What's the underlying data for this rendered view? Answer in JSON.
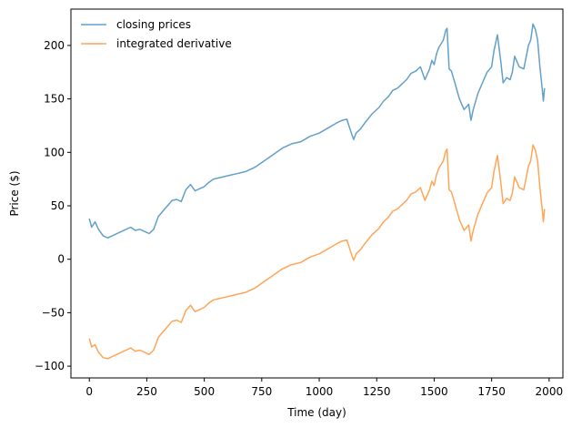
{
  "chart_data": {
    "type": "line",
    "xlabel": "Time (day)",
    "ylabel": "Price ($)",
    "xlim": [
      -80,
      2060
    ],
    "ylim": [
      -111,
      234
    ],
    "xticks": [
      0,
      250,
      500,
      750,
      1000,
      1250,
      1500,
      1750,
      2000
    ],
    "yticks": [
      -100,
      -50,
      0,
      50,
      100,
      150,
      200
    ],
    "legend_position": "top-left",
    "grid": false,
    "series": [
      {
        "name": "closing prices",
        "color": "#1f77b4",
        "x": [
          0,
          10,
          25,
          40,
          60,
          80,
          100,
          120,
          140,
          160,
          180,
          200,
          220,
          240,
          260,
          280,
          300,
          320,
          340,
          360,
          380,
          400,
          420,
          440,
          460,
          480,
          500,
          520,
          540,
          560,
          600,
          640,
          680,
          720,
          760,
          800,
          840,
          880,
          920,
          960,
          1000,
          1040,
          1080,
          1100,
          1120,
          1140,
          1150,
          1160,
          1180,
          1200,
          1230,
          1260,
          1280,
          1300,
          1320,
          1340,
          1360,
          1380,
          1400,
          1420,
          1440,
          1460,
          1480,
          1490,
          1500,
          1510,
          1520,
          1540,
          1550,
          1556,
          1565,
          1575,
          1590,
          1610,
          1630,
          1650,
          1660,
          1670,
          1690,
          1710,
          1730,
          1750,
          1760,
          1775,
          1790,
          1800,
          1815,
          1830,
          1840,
          1850,
          1870,
          1890,
          1910,
          1920,
          1930,
          1940,
          1950,
          1960,
          1970,
          1975,
          1980
        ],
        "values": [
          38,
          30,
          35,
          28,
          22,
          20,
          22,
          24,
          26,
          28,
          30,
          27,
          28,
          26,
          24,
          28,
          40,
          45,
          50,
          55,
          56,
          54,
          65,
          70,
          64,
          66,
          68,
          72,
          75,
          76,
          78,
          80,
          82,
          86,
          92,
          98,
          104,
          108,
          110,
          115,
          118,
          123,
          128,
          130,
          131,
          118,
          112,
          118,
          122,
          128,
          136,
          142,
          148,
          152,
          158,
          160,
          164,
          168,
          174,
          176,
          180,
          168,
          178,
          186,
          182,
          192,
          198,
          205,
          214,
          216,
          178,
          176,
          165,
          150,
          140,
          145,
          130,
          140,
          155,
          165,
          175,
          180,
          195,
          210,
          185,
          165,
          170,
          168,
          175,
          190,
          180,
          178,
          200,
          205,
          220,
          215,
          205,
          180,
          160,
          148,
          160
        ]
      },
      {
        "name": "integrated derivative",
        "color": "#ff7f0e",
        "x": [
          0,
          10,
          25,
          40,
          60,
          80,
          100,
          120,
          140,
          160,
          180,
          200,
          220,
          240,
          260,
          280,
          300,
          320,
          340,
          360,
          380,
          400,
          420,
          440,
          460,
          480,
          500,
          520,
          540,
          560,
          600,
          640,
          680,
          720,
          760,
          800,
          840,
          880,
          920,
          960,
          1000,
          1040,
          1080,
          1100,
          1120,
          1140,
          1150,
          1160,
          1180,
          1200,
          1230,
          1260,
          1280,
          1300,
          1320,
          1340,
          1360,
          1380,
          1400,
          1420,
          1440,
          1460,
          1480,
          1490,
          1500,
          1510,
          1520,
          1540,
          1550,
          1556,
          1565,
          1575,
          1590,
          1610,
          1630,
          1650,
          1660,
          1670,
          1690,
          1710,
          1730,
          1750,
          1760,
          1775,
          1790,
          1800,
          1815,
          1830,
          1840,
          1850,
          1870,
          1890,
          1910,
          1920,
          1930,
          1940,
          1950,
          1960,
          1970,
          1975,
          1980
        ],
        "values": [
          -74,
          -82,
          -80,
          -87,
          -92,
          -93,
          -91,
          -89,
          -87,
          -85,
          -83,
          -86,
          -85,
          -87,
          -89,
          -85,
          -73,
          -68,
          -63,
          -58,
          -57,
          -59,
          -48,
          -43,
          -49,
          -47,
          -45,
          -41,
          -38,
          -37,
          -35,
          -33,
          -31,
          -27,
          -21,
          -15,
          -9,
          -5,
          -3,
          2,
          5,
          10,
          15,
          17,
          18,
          5,
          -1,
          5,
          9,
          15,
          23,
          29,
          35,
          39,
          45,
          47,
          51,
          55,
          61,
          63,
          67,
          55,
          65,
          73,
          69,
          79,
          85,
          92,
          101,
          103,
          65,
          63,
          52,
          37,
          27,
          32,
          17,
          27,
          42,
          52,
          62,
          67,
          82,
          97,
          72,
          52,
          57,
          55,
          62,
          77,
          67,
          65,
          87,
          92,
          107,
          102,
          92,
          67,
          47,
          35,
          47
        ]
      }
    ]
  }
}
